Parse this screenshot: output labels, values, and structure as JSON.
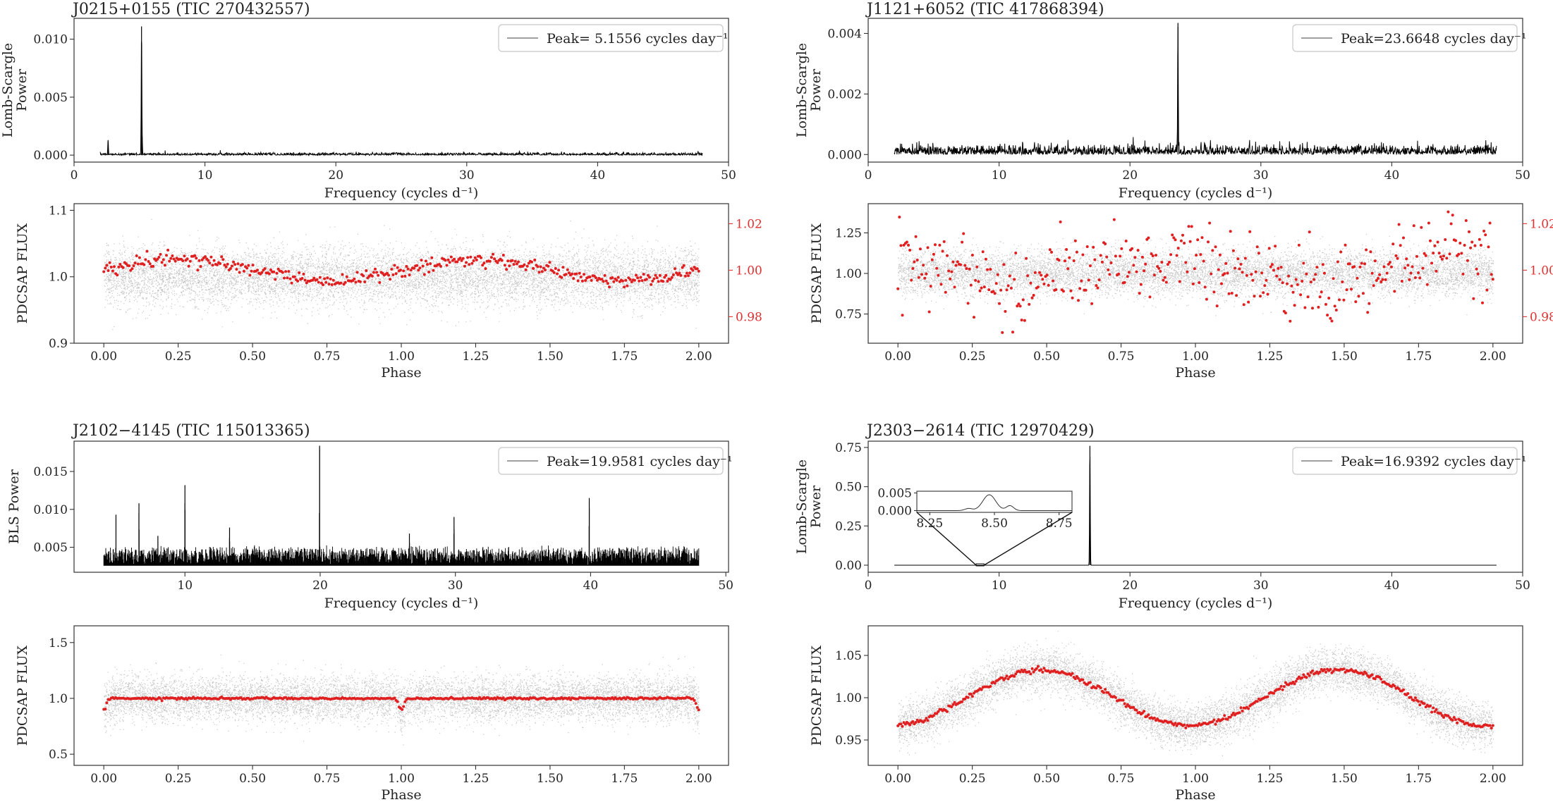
{
  "figure": {
    "panels": [
      {
        "title": "J0215+0155 (TIC 270432557)",
        "periodogram": {
          "ylabel_lines": [
            "Lomb-Scargle",
            "Power"
          ],
          "xlabel": "Frequency (cycles d⁻¹)",
          "legend": "Peak= 5.1556 cycles day⁻¹"
        },
        "lightcurve": {
          "ylabel": "PDCSAP FLUX",
          "xlabel": "Phase"
        }
      },
      {
        "title": "J1121+6052 (TIC 417868394)",
        "periodogram": {
          "ylabel_lines": [
            "Lomb-Scargle",
            "Power"
          ],
          "xlabel": "Frequency (cycles d⁻¹)",
          "legend": "Peak=23.6648 cycles day⁻¹"
        },
        "lightcurve": {
          "ylabel": "PDCSAP FLUX",
          "xlabel": "Phase"
        }
      },
      {
        "title": "J2102−4145 (TIC 115013365)",
        "periodogram": {
          "ylabel_lines": [
            "BLS Power"
          ],
          "xlabel": "Frequency (cycles d⁻¹)",
          "legend": "Peak=19.9581 cycles day⁻¹"
        },
        "lightcurve": {
          "ylabel": "PDCSAP FLUX",
          "xlabel": "Phase"
        }
      },
      {
        "title": "J2303−2614 (TIC 12970429)",
        "periodogram": {
          "ylabel_lines": [
            "Lomb-Scargle",
            "Power"
          ],
          "xlabel": "Frequency (cycles d⁻¹)",
          "legend": "Peak=16.9392 cycles day⁻¹"
        },
        "lightcurve": {
          "ylabel": "PDCSAP FLUX",
          "xlabel": "Phase"
        }
      }
    ]
  },
  "chart_data": [
    {
      "type": "line",
      "title": "J0215+0155 (TIC 270432557)",
      "xlabel": "Frequency (cycles d⁻¹)",
      "ylabel": "Lomb-Scargle Power",
      "xlim": [
        0,
        50
      ],
      "ylim": [
        -0.0006,
        0.0118
      ],
      "xticks": [
        0,
        10,
        20,
        30,
        40,
        50
      ],
      "yticks": [
        0.0,
        0.005,
        0.01
      ],
      "ytick_labels": [
        "0.000",
        "0.005",
        "0.010"
      ],
      "freq_range": [
        2.0,
        48.0
      ],
      "noise_level": 0.0002,
      "peaks": [
        [
          5.1556,
          0.0111
        ],
        [
          2.6,
          0.0013
        ],
        [
          5.2,
          0.0016
        ]
      ],
      "legend": "Peak= 5.1556 cycles day⁻¹",
      "legend_loc": "upper right"
    },
    {
      "type": "scatter",
      "xlabel": "Phase",
      "ylabel": "PDCSAP FLUX",
      "xlim": [
        -0.1,
        2.1
      ],
      "ylim": [
        0.9,
        1.11
      ],
      "xticks": [
        0.0,
        0.25,
        0.5,
        0.75,
        1.0,
        1.25,
        1.5,
        1.75,
        2.0
      ],
      "yticks": [
        0.9,
        1.0,
        1.1
      ],
      "raw_scatter_sd": 0.022,
      "binned_secondary_axis": {
        "ylim": [
          0.9686,
          1.0286
        ],
        "yticks": [
          0.98,
          1.0,
          1.02
        ],
        "color": "#e03030"
      },
      "binned_model": {
        "mean": 1.0,
        "amplitude": 0.0045,
        "harmonic": 2,
        "phase_offset": 0.0,
        "scatter": 0.0015
      }
    },
    {
      "type": "line",
      "title": "J1121+6052 (TIC 417868394)",
      "xlabel": "Frequency (cycles d⁻¹)",
      "ylabel": "Lomb-Scargle Power",
      "xlim": [
        0,
        50
      ],
      "ylim": [
        -0.00025,
        0.0045
      ],
      "xticks": [
        0,
        10,
        20,
        30,
        40,
        50
      ],
      "yticks": [
        0.0,
        0.002,
        0.004
      ],
      "ytick_labels": [
        "0.000",
        "0.002",
        "0.004"
      ],
      "freq_range": [
        2.0,
        48.0
      ],
      "noise_level": 0.0003,
      "peaks": [
        [
          23.6648,
          0.00435
        ]
      ],
      "legend": "Peak=23.6648 cycles day⁻¹",
      "legend_loc": "upper right"
    },
    {
      "type": "scatter",
      "xlabel": "Phase",
      "ylabel": "PDCSAP FLUX",
      "xlim": [
        -0.1,
        2.1
      ],
      "ylim": [
        0.57,
        1.43
      ],
      "xticks": [
        0.0,
        0.25,
        0.5,
        0.75,
        1.0,
        1.25,
        1.5,
        1.75,
        2.0
      ],
      "yticks": [
        0.75,
        1.0,
        1.25
      ],
      "raw_scatter_sd": 0.07,
      "binned_secondary_axis": {
        "ylim": [
          0.9686,
          1.0286
        ],
        "yticks": [
          0.98,
          1.0,
          1.02
        ],
        "color": "#e03030"
      },
      "binned_model": {
        "mean": 1.0,
        "amplitude": 0.006,
        "harmonic": 2,
        "phase_offset": 0.35,
        "scatter": 0.008
      }
    },
    {
      "type": "line",
      "title": "J2102−4145 (TIC 115013365)",
      "xlabel": "Frequency (cycles d⁻¹)",
      "ylabel": "BLS Power",
      "xlim": [
        1.8,
        50.2
      ],
      "ylim": [
        0.0017,
        0.019
      ],
      "xticks": [
        10,
        20,
        30,
        40,
        50
      ],
      "yticks": [
        0.005,
        0.01,
        0.015
      ],
      "ytick_labels": [
        "0.005",
        "0.010",
        "0.015"
      ],
      "freq_range": [
        4.0,
        48.0
      ],
      "noise_floor": [
        0.0027,
        0.0053
      ],
      "peaks": [
        [
          19.9581,
          0.0184
        ],
        [
          10.0,
          0.0132
        ],
        [
          39.9,
          0.0115
        ],
        [
          6.6,
          0.0108
        ],
        [
          4.9,
          0.0093
        ],
        [
          29.9,
          0.009
        ],
        [
          13.3,
          0.0076
        ],
        [
          26.6,
          0.0068
        ],
        [
          8.0,
          0.0065
        ]
      ],
      "legend": "Peak=19.9581 cycles day⁻¹",
      "legend_loc": "upper right"
    },
    {
      "type": "scatter",
      "xlabel": "Phase",
      "ylabel": "PDCSAP FLUX",
      "xlim": [
        -0.1,
        2.1
      ],
      "ylim": [
        0.4,
        1.65
      ],
      "xticks": [
        0.0,
        0.25,
        0.5,
        0.75,
        1.0,
        1.25,
        1.5,
        1.75,
        2.0
      ],
      "yticks": [
        0.5,
        1.0,
        1.5
      ],
      "raw_scatter_sd": 0.1,
      "binned_model": {
        "mean": 1.0,
        "amplitude": 0.0,
        "eclipse_depth": 0.1,
        "eclipse_width": 0.012,
        "scatter": 0.005
      }
    },
    {
      "type": "line",
      "title": "J2303−2614 (TIC 12970429)",
      "xlabel": "Frequency (cycles d⁻¹)",
      "ylabel": "Lomb-Scargle Power",
      "xlim": [
        0,
        50
      ],
      "ylim": [
        -0.045,
        0.79
      ],
      "xticks": [
        0,
        10,
        20,
        30,
        40,
        50
      ],
      "yticks": [
        0.0,
        0.25,
        0.5,
        0.75
      ],
      "ytick_labels": [
        "0.00",
        "0.25",
        "0.50",
        "0.75"
      ],
      "freq_range": [
        2.0,
        48.0
      ],
      "noise_level": 0.0,
      "peaks": [
        [
          16.9392,
          0.76
        ],
        [
          16.95,
          0.15
        ]
      ],
      "legend": "Peak=16.9392 cycles day⁻¹",
      "legend_loc": "upper right",
      "inset": {
        "xlim": [
          8.2,
          8.8
        ],
        "ylim": [
          -0.0005,
          0.0055
        ],
        "xticks": [
          8.25,
          8.5,
          8.75
        ],
        "xtick_labels": [
          "8.25",
          "8.50",
          "8.75"
        ],
        "yticks": [
          0.0,
          0.005
        ],
        "ytick_labels": [
          "0.000",
          "0.005"
        ],
        "zoom_region_x": [
          8.25,
          8.85
        ]
      }
    },
    {
      "type": "scatter",
      "xlabel": "Phase",
      "ylabel": "PDCSAP FLUX",
      "xlim": [
        -0.1,
        2.1
      ],
      "ylim": [
        0.92,
        1.085
      ],
      "xticks": [
        0.0,
        0.25,
        0.5,
        0.75,
        1.0,
        1.25,
        1.5,
        1.75,
        2.0
      ],
      "yticks": [
        0.95,
        1.0,
        1.05
      ],
      "raw_scatter_sd": 0.013,
      "binned_model": {
        "mean": 1.0,
        "amplitude": 0.033,
        "harmonic": 1,
        "phase_offset": 0.0,
        "scatter": 0.0015,
        "shape": "cos"
      }
    }
  ]
}
